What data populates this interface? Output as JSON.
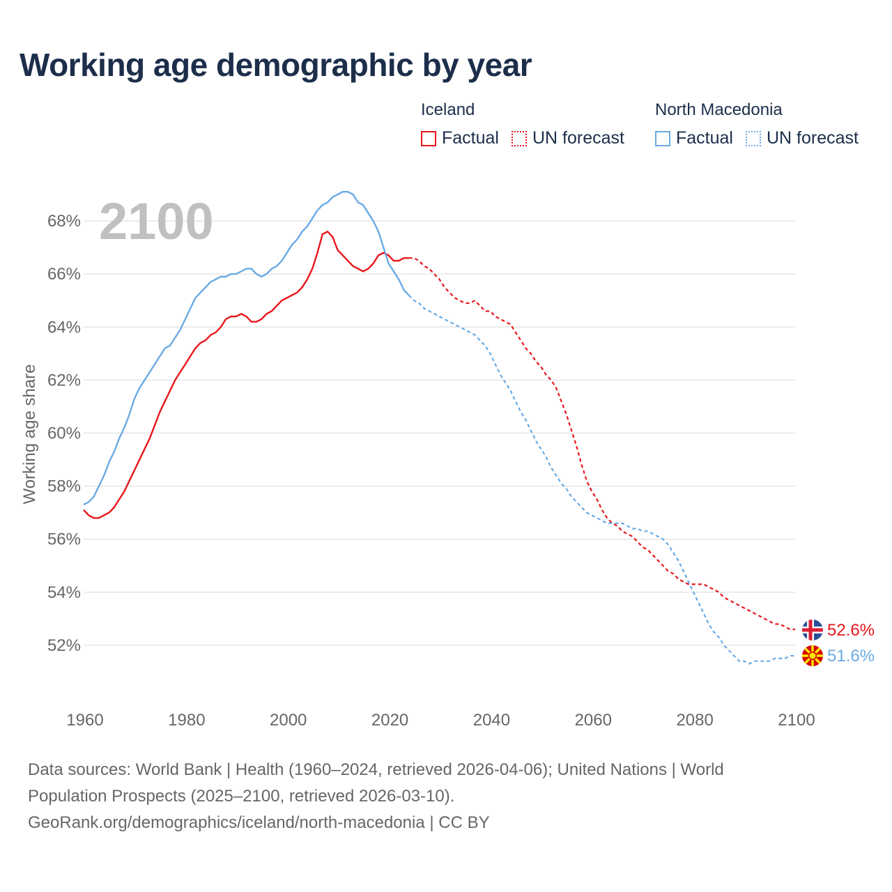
{
  "title": "Working age demographic by year",
  "legend": {
    "groups": [
      {
        "name": "Iceland",
        "factual_label": "Factual",
        "forecast_label": "UN forecast",
        "color": "#e8161b"
      },
      {
        "name": "North Macedonia",
        "factual_label": "Factual",
        "forecast_label": "UN forecast",
        "color": "#6aaae4"
      }
    ]
  },
  "year_watermark": "2100",
  "footer": {
    "line1": "Data sources: World Bank | Health (1960–2024, retrieved 2026-04-06); United Nations | World",
    "line2": "Population Prospects (2025–2100, retrieved 2026-03-10).",
    "line3": "GeoRank.org/demographics/iceland/north-macedonia | CC BY"
  },
  "chart_data": {
    "type": "line",
    "title": "Working age demographic by year",
    "xlabel": "",
    "ylabel": "Working age share",
    "xlim": [
      1960,
      2100
    ],
    "ylim": [
      50,
      69.5
    ],
    "x_ticks": [
      1960,
      1980,
      2000,
      2020,
      2040,
      2060,
      2080,
      2100
    ],
    "y_ticks": [
      52,
      54,
      56,
      58,
      60,
      62,
      64,
      66,
      68
    ],
    "y_tick_labels": [
      "52%",
      "54%",
      "56%",
      "58%",
      "60%",
      "62%",
      "64%",
      "66%",
      "68%"
    ],
    "grid": true,
    "series": [
      {
        "name": "Iceland",
        "color": "#e8161b",
        "end_label": "52.6%",
        "factual": [
          [
            1960,
            57.1
          ],
          [
            1961,
            56.9
          ],
          [
            1962,
            56.8
          ],
          [
            1963,
            56.8
          ],
          [
            1964,
            56.9
          ],
          [
            1965,
            57.0
          ],
          [
            1966,
            57.2
          ],
          [
            1967,
            57.5
          ],
          [
            1968,
            57.8
          ],
          [
            1969,
            58.2
          ],
          [
            1970,
            58.6
          ],
          [
            1971,
            59.0
          ],
          [
            1972,
            59.4
          ],
          [
            1973,
            59.8
          ],
          [
            1974,
            60.3
          ],
          [
            1975,
            60.8
          ],
          [
            1976,
            61.2
          ],
          [
            1977,
            61.6
          ],
          [
            1978,
            62.0
          ],
          [
            1979,
            62.3
          ],
          [
            1980,
            62.6
          ],
          [
            1981,
            62.9
          ],
          [
            1982,
            63.2
          ],
          [
            1983,
            63.4
          ],
          [
            1984,
            63.5
          ],
          [
            1985,
            63.7
          ],
          [
            1986,
            63.8
          ],
          [
            1987,
            64.0
          ],
          [
            1988,
            64.3
          ],
          [
            1989,
            64.4
          ],
          [
            1990,
            64.4
          ],
          [
            1991,
            64.5
          ],
          [
            1992,
            64.4
          ],
          [
            1993,
            64.2
          ],
          [
            1994,
            64.2
          ],
          [
            1995,
            64.3
          ],
          [
            1996,
            64.5
          ],
          [
            1997,
            64.6
          ],
          [
            1998,
            64.8
          ],
          [
            1999,
            65.0
          ],
          [
            2000,
            65.1
          ],
          [
            2001,
            65.2
          ],
          [
            2002,
            65.3
          ],
          [
            2003,
            65.5
          ],
          [
            2004,
            65.8
          ],
          [
            2005,
            66.2
          ],
          [
            2006,
            66.8
          ],
          [
            2007,
            67.5
          ],
          [
            2008,
            67.6
          ],
          [
            2009,
            67.4
          ],
          [
            2010,
            66.9
          ],
          [
            2011,
            66.7
          ],
          [
            2012,
            66.5
          ],
          [
            2013,
            66.3
          ],
          [
            2014,
            66.2
          ],
          [
            2015,
            66.1
          ],
          [
            2016,
            66.2
          ],
          [
            2017,
            66.4
          ],
          [
            2018,
            66.7
          ],
          [
            2019,
            66.8
          ],
          [
            2020,
            66.7
          ],
          [
            2021,
            66.5
          ],
          [
            2022,
            66.5
          ],
          [
            2023,
            66.6
          ],
          [
            2024,
            66.6
          ]
        ],
        "forecast": [
          [
            2024,
            66.6
          ],
          [
            2025,
            66.6
          ],
          [
            2026,
            66.5
          ],
          [
            2027,
            66.3
          ],
          [
            2028,
            66.2
          ],
          [
            2029,
            66.0
          ],
          [
            2030,
            65.8
          ],
          [
            2031,
            65.5
          ],
          [
            2032,
            65.3
          ],
          [
            2033,
            65.1
          ],
          [
            2034,
            65.0
          ],
          [
            2035,
            64.9
          ],
          [
            2036,
            64.9
          ],
          [
            2037,
            65.0
          ],
          [
            2038,
            64.8
          ],
          [
            2039,
            64.6
          ],
          [
            2040,
            64.6
          ],
          [
            2041,
            64.4
          ],
          [
            2042,
            64.3
          ],
          [
            2043,
            64.2
          ],
          [
            2044,
            64.1
          ],
          [
            2045,
            63.8
          ],
          [
            2046,
            63.5
          ],
          [
            2047,
            63.2
          ],
          [
            2048,
            63.0
          ],
          [
            2049,
            62.7
          ],
          [
            2050,
            62.5
          ],
          [
            2051,
            62.2
          ],
          [
            2052,
            62.0
          ],
          [
            2053,
            61.7
          ],
          [
            2054,
            61.2
          ],
          [
            2055,
            60.7
          ],
          [
            2056,
            60.1
          ],
          [
            2057,
            59.5
          ],
          [
            2058,
            58.8
          ],
          [
            2059,
            58.2
          ],
          [
            2060,
            57.8
          ],
          [
            2061,
            57.5
          ],
          [
            2062,
            57.1
          ],
          [
            2063,
            56.8
          ],
          [
            2064,
            56.6
          ],
          [
            2065,
            56.5
          ],
          [
            2066,
            56.3
          ],
          [
            2067,
            56.2
          ],
          [
            2068,
            56.1
          ],
          [
            2069,
            55.9
          ],
          [
            2070,
            55.7
          ],
          [
            2071,
            55.6
          ],
          [
            2072,
            55.4
          ],
          [
            2073,
            55.2
          ],
          [
            2074,
            55.0
          ],
          [
            2075,
            54.8
          ],
          [
            2076,
            54.7
          ],
          [
            2077,
            54.5
          ],
          [
            2078,
            54.4
          ],
          [
            2079,
            54.3
          ],
          [
            2080,
            54.3
          ],
          [
            2081,
            54.3
          ],
          [
            2082,
            54.3
          ],
          [
            2083,
            54.2
          ],
          [
            2084,
            54.1
          ],
          [
            2085,
            54.0
          ],
          [
            2086,
            53.8
          ],
          [
            2087,
            53.7
          ],
          [
            2088,
            53.6
          ],
          [
            2089,
            53.5
          ],
          [
            2090,
            53.4
          ],
          [
            2091,
            53.3
          ],
          [
            2092,
            53.2
          ],
          [
            2093,
            53.1
          ],
          [
            2094,
            53.0
          ],
          [
            2095,
            52.9
          ],
          [
            2096,
            52.8
          ],
          [
            2097,
            52.8
          ],
          [
            2098,
            52.7
          ],
          [
            2099,
            52.6
          ],
          [
            2100,
            52.6
          ]
        ]
      },
      {
        "name": "North Macedonia",
        "color": "#6aaae4",
        "end_label": "51.6%",
        "factual": [
          [
            1960,
            57.3
          ],
          [
            1961,
            57.4
          ],
          [
            1962,
            57.6
          ],
          [
            1963,
            58.0
          ],
          [
            1964,
            58.4
          ],
          [
            1965,
            58.9
          ],
          [
            1966,
            59.3
          ],
          [
            1967,
            59.8
          ],
          [
            1968,
            60.2
          ],
          [
            1969,
            60.7
          ],
          [
            1970,
            61.3
          ],
          [
            1971,
            61.7
          ],
          [
            1972,
            62.0
          ],
          [
            1973,
            62.3
          ],
          [
            1974,
            62.6
          ],
          [
            1975,
            62.9
          ],
          [
            1976,
            63.2
          ],
          [
            1977,
            63.3
          ],
          [
            1978,
            63.6
          ],
          [
            1979,
            63.9
          ],
          [
            1980,
            64.3
          ],
          [
            1981,
            64.7
          ],
          [
            1982,
            65.1
          ],
          [
            1983,
            65.3
          ],
          [
            1984,
            65.5
          ],
          [
            1985,
            65.7
          ],
          [
            1986,
            65.8
          ],
          [
            1987,
            65.9
          ],
          [
            1988,
            65.9
          ],
          [
            1989,
            66.0
          ],
          [
            1990,
            66.0
          ],
          [
            1991,
            66.1
          ],
          [
            1992,
            66.2
          ],
          [
            1993,
            66.2
          ],
          [
            1994,
            66.0
          ],
          [
            1995,
            65.9
          ],
          [
            1996,
            66.0
          ],
          [
            1997,
            66.2
          ],
          [
            1998,
            66.3
          ],
          [
            1999,
            66.5
          ],
          [
            2000,
            66.8
          ],
          [
            2001,
            67.1
          ],
          [
            2002,
            67.3
          ],
          [
            2003,
            67.6
          ],
          [
            2004,
            67.8
          ],
          [
            2005,
            68.1
          ],
          [
            2006,
            68.4
          ],
          [
            2007,
            68.6
          ],
          [
            2008,
            68.7
          ],
          [
            2009,
            68.9
          ],
          [
            2010,
            69.0
          ],
          [
            2011,
            69.1
          ],
          [
            2012,
            69.1
          ],
          [
            2013,
            69.0
          ],
          [
            2014,
            68.7
          ],
          [
            2015,
            68.6
          ],
          [
            2016,
            68.3
          ],
          [
            2017,
            68.0
          ],
          [
            2018,
            67.6
          ],
          [
            2019,
            67.0
          ],
          [
            2020,
            66.4
          ],
          [
            2021,
            66.1
          ],
          [
            2022,
            65.8
          ],
          [
            2023,
            65.4
          ],
          [
            2024,
            65.2
          ]
        ],
        "forecast": [
          [
            2024,
            65.2
          ],
          [
            2025,
            65.0
          ],
          [
            2026,
            64.9
          ],
          [
            2027,
            64.7
          ],
          [
            2028,
            64.6
          ],
          [
            2029,
            64.5
          ],
          [
            2030,
            64.4
          ],
          [
            2031,
            64.3
          ],
          [
            2032,
            64.2
          ],
          [
            2033,
            64.1
          ],
          [
            2034,
            64.0
          ],
          [
            2035,
            63.9
          ],
          [
            2036,
            63.8
          ],
          [
            2037,
            63.7
          ],
          [
            2038,
            63.5
          ],
          [
            2039,
            63.3
          ],
          [
            2040,
            63.0
          ],
          [
            2041,
            62.6
          ],
          [
            2042,
            62.2
          ],
          [
            2043,
            61.9
          ],
          [
            2044,
            61.6
          ],
          [
            2045,
            61.2
          ],
          [
            2046,
            60.8
          ],
          [
            2047,
            60.5
          ],
          [
            2048,
            60.1
          ],
          [
            2049,
            59.7
          ],
          [
            2050,
            59.4
          ],
          [
            2051,
            59.1
          ],
          [
            2052,
            58.7
          ],
          [
            2053,
            58.4
          ],
          [
            2054,
            58.1
          ],
          [
            2055,
            57.9
          ],
          [
            2056,
            57.6
          ],
          [
            2057,
            57.4
          ],
          [
            2058,
            57.2
          ],
          [
            2059,
            57.0
          ],
          [
            2060,
            56.9
          ],
          [
            2061,
            56.8
          ],
          [
            2062,
            56.7
          ],
          [
            2063,
            56.6
          ],
          [
            2064,
            56.6
          ],
          [
            2065,
            56.6
          ],
          [
            2066,
            56.6
          ],
          [
            2067,
            56.5
          ],
          [
            2068,
            56.4
          ],
          [
            2069,
            56.4
          ],
          [
            2070,
            56.3
          ],
          [
            2071,
            56.3
          ],
          [
            2072,
            56.2
          ],
          [
            2073,
            56.1
          ],
          [
            2074,
            56.0
          ],
          [
            2075,
            55.8
          ],
          [
            2076,
            55.5
          ],
          [
            2077,
            55.2
          ],
          [
            2078,
            54.8
          ],
          [
            2079,
            54.4
          ],
          [
            2080,
            54.0
          ],
          [
            2081,
            53.6
          ],
          [
            2082,
            53.2
          ],
          [
            2083,
            52.8
          ],
          [
            2084,
            52.5
          ],
          [
            2085,
            52.3
          ],
          [
            2086,
            52.0
          ],
          [
            2087,
            51.8
          ],
          [
            2088,
            51.6
          ],
          [
            2089,
            51.4
          ],
          [
            2090,
            51.4
          ],
          [
            2091,
            51.3
          ],
          [
            2092,
            51.4
          ],
          [
            2093,
            51.4
          ],
          [
            2094,
            51.4
          ],
          [
            2095,
            51.4
          ],
          [
            2096,
            51.5
          ],
          [
            2097,
            51.5
          ],
          [
            2098,
            51.5
          ],
          [
            2099,
            51.6
          ],
          [
            2100,
            51.6
          ]
        ]
      }
    ]
  }
}
